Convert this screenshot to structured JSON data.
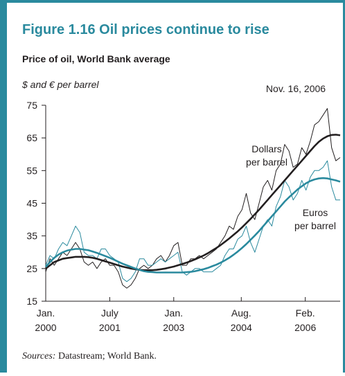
{
  "chart_data": {
    "type": "line",
    "title": "Figure 1.16  Oil prices continue to rise",
    "subtitle": "Price of oil, World Bank average",
    "ylabel": "$ and € per barrel",
    "annotations": [
      {
        "text": [
          "Nov. 16, 2006"
        ]
      },
      {
        "text": [
          "Dollars",
          "per barrel"
        ]
      },
      {
        "text": [
          "Euros",
          "per barrel"
        ]
      }
    ],
    "source_label": "Sources:",
    "source": "Datastream; World Bank.",
    "xlim": [
      2000,
      2006.9
    ],
    "xticks": [
      {
        "value": 2000,
        "label": [
          "Jan.",
          "2000"
        ]
      },
      {
        "value": 2001.5,
        "label": [
          "July",
          "2001"
        ]
      },
      {
        "value": 2003,
        "label": [
          "Jan.",
          "2003"
        ]
      },
      {
        "value": 2004.583,
        "label": [
          "Aug.",
          "2004"
        ]
      },
      {
        "value": 2006.083,
        "label": [
          "Feb.",
          "2006"
        ]
      }
    ],
    "ylim": [
      15,
      75
    ],
    "yticks": [
      15,
      25,
      35,
      45,
      55,
      65,
      75
    ],
    "x": [
      2000.0,
      2000.1,
      2000.2,
      2000.3,
      2000.4,
      2000.5,
      2000.6,
      2000.7,
      2000.8,
      2000.9,
      2001.0,
      2001.1,
      2001.2,
      2001.3,
      2001.4,
      2001.5,
      2001.6,
      2001.7,
      2001.8,
      2001.9,
      2002.0,
      2002.1,
      2002.2,
      2002.3,
      2002.4,
      2002.5,
      2002.6,
      2002.7,
      2002.8,
      2002.9,
      2003.0,
      2003.1,
      2003.2,
      2003.3,
      2003.4,
      2003.5,
      2003.6,
      2003.7,
      2003.8,
      2003.9,
      2004.0,
      2004.1,
      2004.2,
      2004.3,
      2004.4,
      2004.5,
      2004.6,
      2004.7,
      2004.8,
      2004.9,
      2005.0,
      2005.1,
      2005.2,
      2005.3,
      2005.4,
      2005.5,
      2005.6,
      2005.7,
      2005.8,
      2005.9,
      2006.0,
      2006.1,
      2006.2,
      2006.3,
      2006.4,
      2006.5,
      2006.6,
      2006.7,
      2006.8,
      2006.9
    ],
    "series": [
      {
        "color": "#231f20",
        "width": 1,
        "values": [
          24,
          28,
          26,
          28,
          30,
          29,
          31,
          33,
          31,
          27,
          26,
          27,
          25,
          27,
          28,
          26,
          26,
          24,
          20,
          19,
          20,
          22,
          25,
          26,
          25,
          26,
          28,
          29,
          27,
          29,
          32,
          33,
          26,
          26,
          28,
          28,
          29,
          28,
          29,
          30,
          31,
          33,
          35,
          38,
          37,
          41,
          43,
          48,
          42,
          40,
          45,
          50,
          52,
          49,
          55,
          57,
          63,
          61,
          56,
          57,
          62,
          60,
          64,
          69,
          70,
          72,
          74,
          62,
          58,
          59
        ]
      },
      {
        "color": "#2a8a9e",
        "width": 1,
        "values": [
          26,
          29,
          28,
          31,
          33,
          32,
          35,
          38,
          36,
          30,
          29,
          29,
          28,
          31,
          31,
          29,
          28,
          27,
          22,
          21,
          22,
          24,
          28,
          28,
          26,
          26,
          27,
          28,
          27,
          28,
          29,
          30,
          24,
          23,
          24,
          25,
          25,
          24,
          24,
          24,
          25,
          26,
          29,
          31,
          31,
          34,
          35,
          38,
          33,
          30,
          34,
          38,
          40,
          38,
          44,
          47,
          52,
          50,
          46,
          48,
          52,
          49,
          53,
          55,
          55,
          56,
          58,
          50,
          46,
          46
        ]
      },
      {
        "color": "#231f20",
        "width": 2.6,
        "values": [
          25,
          26,
          27,
          27.5,
          28,
          28.2,
          28.4,
          28.6,
          28.6,
          28.6,
          28.5,
          28.3,
          28,
          27.6,
          27.2,
          26.8,
          26.4,
          26,
          25.6,
          25.3,
          25,
          24.8,
          24.6,
          24.5,
          24.5,
          24.5,
          24.6,
          24.8,
          25,
          25.3,
          25.6,
          26,
          26.4,
          26.8,
          27.3,
          27.8,
          28.4,
          29,
          29.7,
          30.5,
          31.3,
          32.2,
          33.2,
          34.2,
          35.3,
          36.4,
          37.6,
          38.9,
          40.2,
          41.6,
          43,
          44.5,
          46,
          47.5,
          49,
          50.5,
          52,
          53.5,
          55,
          56.5,
          58,
          59.5,
          61,
          62.5,
          63.8,
          64.8,
          65.5,
          65.9,
          66,
          65.8
        ]
      },
      {
        "color": "#2a8a9e",
        "width": 2.6,
        "values": [
          25.5,
          27,
          28.3,
          29.3,
          30,
          30.5,
          30.8,
          31,
          31,
          30.8,
          30.6,
          30.2,
          29.8,
          29.3,
          28.8,
          28.3,
          27.7,
          27.1,
          26.5,
          26,
          25.5,
          25,
          24.6,
          24.2,
          24,
          23.9,
          23.8,
          23.8,
          23.8,
          23.8,
          23.8,
          23.8,
          23.8,
          23.9,
          24,
          24.2,
          24.5,
          24.8,
          25.2,
          25.7,
          26.2,
          26.8,
          27.5,
          28.3,
          29.2,
          30.2,
          31.3,
          32.5,
          33.8,
          35.1,
          36.5,
          38,
          39.5,
          41,
          42.5,
          44,
          45.5,
          46.8,
          48,
          49.2,
          50.2,
          51.1,
          51.8,
          52.3,
          52.6,
          52.7,
          52.6,
          52.3,
          52,
          51.6
        ]
      }
    ]
  }
}
